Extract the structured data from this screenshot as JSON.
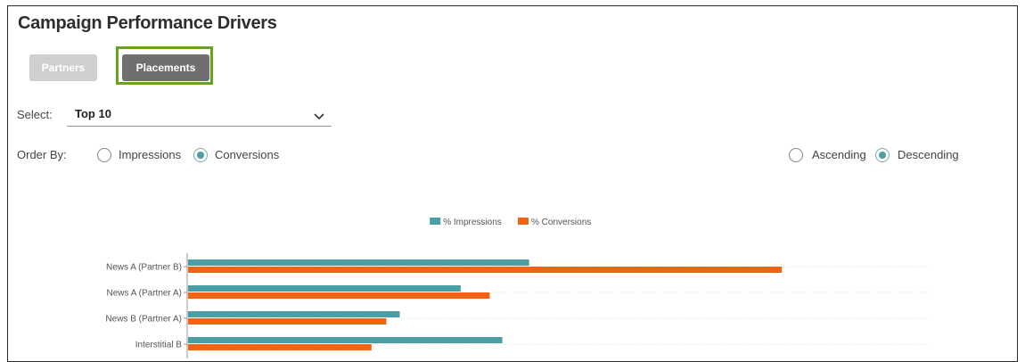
{
  "title": "Campaign Performance Drivers",
  "tabs": {
    "partners": "Partners",
    "placements": "Placements"
  },
  "select": {
    "label": "Select:",
    "value": "Top 10"
  },
  "order_by": {
    "label": "Order By:",
    "impressions": "Impressions",
    "conversions": "Conversions",
    "selected": "Conversions"
  },
  "sort": {
    "ascending": "Ascending",
    "descending": "Descending",
    "selected": "Descending"
  },
  "colors": {
    "impressions": "#4a9fa4",
    "conversions": "#f06414",
    "accent_border": "#6aa121"
  },
  "chart_data": {
    "type": "bar",
    "orientation": "horizontal",
    "legend_position": "top-center",
    "categories": [
      "News A (Partner B)",
      "News A (Partner A)",
      "News B (Partner A)",
      "Interstitial B"
    ],
    "series": [
      {
        "name": "% Impressions",
        "values": [
          46,
          36.8,
          28.6,
          42.4
        ]
      },
      {
        "name": "% Conversions",
        "values": [
          80,
          40.7,
          26.8,
          24.8
        ]
      }
    ],
    "xlim": [
      0,
      100
    ],
    "grid": true
  }
}
